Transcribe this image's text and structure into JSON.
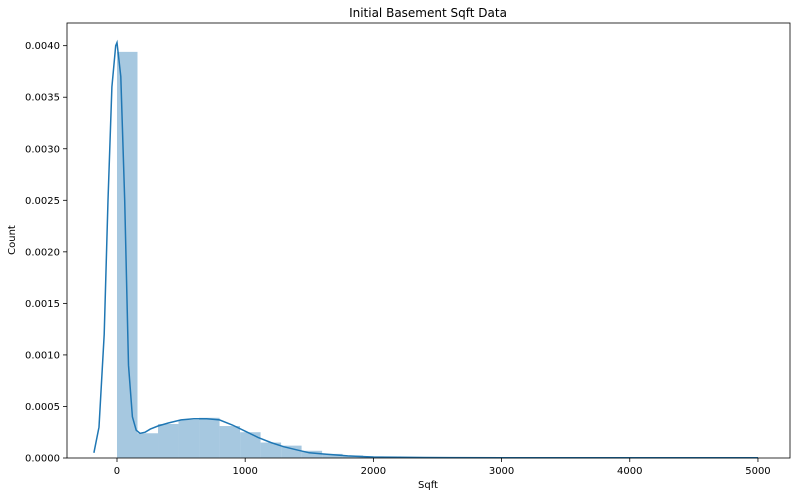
{
  "chart_data": {
    "type": "bar",
    "title": "Initial Basement Sqft Data",
    "xlabel": "Sqft",
    "ylabel": "Count",
    "xlim": [
      -390,
      5250
    ],
    "ylim": [
      0,
      0.00422
    ],
    "xticks": [
      0,
      1000,
      2000,
      3000,
      4000,
      5000
    ],
    "yticks": [
      0.0,
      0.0005,
      0.001,
      0.0015,
      0.002,
      0.0025,
      0.003,
      0.0035,
      0.004
    ],
    "ytick_labels": [
      "0.0000",
      "0.0005",
      "0.0010",
      "0.0015",
      "0.0020",
      "0.0025",
      "0.0030",
      "0.0035",
      "0.0040"
    ],
    "grid": false,
    "histogram": {
      "bin_edges": [
        0,
        160,
        320,
        480,
        640,
        800,
        960,
        1120,
        1280,
        1440,
        1600,
        1760,
        1920,
        2080,
        2240,
        2400,
        2560,
        2720,
        2880,
        3040,
        3200,
        3360,
        3520,
        3680,
        3840,
        4000,
        4160,
        4320,
        4480,
        4640,
        4800,
        4960,
        5000
      ],
      "values": [
        0.00394,
        0.00024,
        0.00033,
        0.00037,
        0.00039,
        0.00031,
        0.00025,
        0.00015,
        0.00012,
        7e-05,
        4e-05,
        2.5e-05,
        1.5e-05,
        1e-05,
        8e-06,
        6e-06,
        4e-06,
        3e-06,
        2e-06,
        2e-06,
        1.5e-06,
        1e-06,
        1e-06,
        1e-06,
        1e-06,
        1e-06,
        1e-06,
        1e-06,
        1e-06,
        1e-06,
        1e-06,
        1e-06
      ],
      "color": "#a6c8e0"
    },
    "kde": {
      "x": [
        -180,
        -140,
        -100,
        -70,
        -40,
        -10,
        0,
        30,
        60,
        90,
        120,
        150,
        180,
        220,
        260,
        320,
        400,
        500,
        600,
        700,
        800,
        900,
        1000,
        1100,
        1200,
        1300,
        1400,
        1500,
        1600,
        1700,
        1800,
        1900,
        2000,
        2200,
        2400,
        2600,
        3000,
        3500,
        4000,
        4500,
        5000
      ],
      "y": [
        5e-05,
        0.0003,
        0.0012,
        0.0025,
        0.0036,
        0.004,
        0.00403,
        0.0037,
        0.0025,
        0.0009,
        0.0004,
        0.00027,
        0.00024,
        0.00025,
        0.00028,
        0.00031,
        0.00034,
        0.00037,
        0.00038,
        0.00038,
        0.00037,
        0.00032,
        0.00026,
        0.0002,
        0.00015,
        0.00011,
        8e-05,
        5e-05,
        4e-05,
        3e-05,
        2e-05,
        1.5e-05,
        1e-05,
        7e-06,
        5e-06,
        4e-06,
        3e-06,
        2e-06,
        2e-06,
        2e-06,
        2e-06
      ],
      "color": "#1f77b4"
    }
  }
}
